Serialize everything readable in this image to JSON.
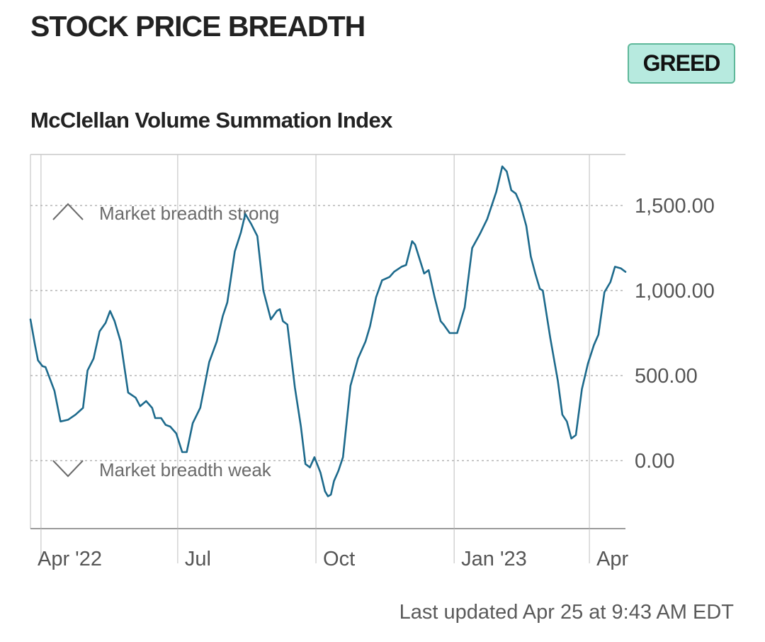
{
  "header": {
    "title": "STOCK PRICE BREADTH",
    "badge": "GREED",
    "subtitle": "McClellan Volume Summation Index"
  },
  "footer": {
    "updated": "Last updated Apr 25 at 9:43 AM EDT"
  },
  "colors": {
    "line": "#1d6a8c",
    "badge_bg": "#b7eadf",
    "badge_border": "#5fb89a",
    "gridline": "#b5b5b5"
  },
  "annotations": {
    "strong": {
      "label": "Market breadth strong",
      "icon": "chevron-up-icon"
    },
    "weak": {
      "label": "Market breadth weak",
      "icon": "chevron-down-icon"
    }
  },
  "chart_data": {
    "type": "line",
    "title": "McClellan Volume Summation Index",
    "xlabel": "",
    "ylabel": "",
    "ylim": [
      -400,
      1800
    ],
    "xlim": [
      "2022-03-25",
      "2023-04-25"
    ],
    "y_ticks": [
      {
        "value": 1500,
        "label": "1,500.00"
      },
      {
        "value": 1000,
        "label": "1,000.00"
      },
      {
        "value": 500,
        "label": "500.00"
      },
      {
        "value": 0,
        "label": "0.00"
      }
    ],
    "x_ticks": [
      {
        "date": "2022-04-01",
        "label": "Apr '22"
      },
      {
        "date": "2022-07-01",
        "label": "Jul"
      },
      {
        "date": "2022-10-01",
        "label": "Oct"
      },
      {
        "date": "2023-01-01",
        "label": "Jan '23"
      },
      {
        "date": "2023-04-01",
        "label": "Apr"
      }
    ],
    "grid": {
      "horizontal": "dotted",
      "vertical": "solid"
    },
    "series": [
      {
        "points": [
          [
            "2022-03-25",
            830
          ],
          [
            "2022-03-28",
            680
          ],
          [
            "2022-03-30",
            590
          ],
          [
            "2022-04-02",
            555
          ],
          [
            "2022-04-04",
            550
          ],
          [
            "2022-04-07",
            480
          ],
          [
            "2022-04-10",
            410
          ],
          [
            "2022-04-14",
            230
          ],
          [
            "2022-04-19",
            240
          ],
          [
            "2022-04-24",
            270
          ],
          [
            "2022-04-29",
            310
          ],
          [
            "2022-05-02",
            530
          ],
          [
            "2022-05-06",
            600
          ],
          [
            "2022-05-10",
            760
          ],
          [
            "2022-05-14",
            810
          ],
          [
            "2022-05-17",
            880
          ],
          [
            "2022-05-20",
            820
          ],
          [
            "2022-05-24",
            700
          ],
          [
            "2022-05-29",
            400
          ],
          [
            "2022-06-03",
            370
          ],
          [
            "2022-06-06",
            320
          ],
          [
            "2022-06-10",
            350
          ],
          [
            "2022-06-14",
            310
          ],
          [
            "2022-06-16",
            250
          ],
          [
            "2022-06-20",
            250
          ],
          [
            "2022-06-23",
            210
          ],
          [
            "2022-06-26",
            200
          ],
          [
            "2022-06-30",
            160
          ],
          [
            "2022-07-04",
            50
          ],
          [
            "2022-07-07",
            50
          ],
          [
            "2022-07-11",
            220
          ],
          [
            "2022-07-16",
            310
          ],
          [
            "2022-07-22",
            580
          ],
          [
            "2022-07-27",
            700
          ],
          [
            "2022-07-31",
            850
          ],
          [
            "2022-08-03",
            930
          ],
          [
            "2022-08-08",
            1230
          ],
          [
            "2022-08-12",
            1340
          ],
          [
            "2022-08-15",
            1450
          ],
          [
            "2022-08-19",
            1390
          ],
          [
            "2022-08-23",
            1320
          ],
          [
            "2022-08-27",
            1000
          ],
          [
            "2022-09-01",
            830
          ],
          [
            "2022-09-05",
            880
          ],
          [
            "2022-09-07",
            890
          ],
          [
            "2022-09-09",
            820
          ],
          [
            "2022-09-12",
            800
          ],
          [
            "2022-09-17",
            430
          ],
          [
            "2022-09-21",
            200
          ],
          [
            "2022-09-24",
            -20
          ],
          [
            "2022-09-27",
            -40
          ],
          [
            "2022-09-30",
            20
          ],
          [
            "2022-10-04",
            -70
          ],
          [
            "2022-10-07",
            -180
          ],
          [
            "2022-10-09",
            -210
          ],
          [
            "2022-10-11",
            -200
          ],
          [
            "2022-10-13",
            -120
          ],
          [
            "2022-10-16",
            -60
          ],
          [
            "2022-10-19",
            20
          ],
          [
            "2022-10-24",
            440
          ],
          [
            "2022-10-29",
            600
          ],
          [
            "2022-11-03",
            700
          ],
          [
            "2022-11-06",
            790
          ],
          [
            "2022-11-10",
            960
          ],
          [
            "2022-11-14",
            1060
          ],
          [
            "2022-11-19",
            1080
          ],
          [
            "2022-11-22",
            1110
          ],
          [
            "2022-11-27",
            1140
          ],
          [
            "2022-11-30",
            1150
          ],
          [
            "2022-12-04",
            1290
          ],
          [
            "2022-12-06",
            1270
          ],
          [
            "2022-12-12",
            1100
          ],
          [
            "2022-12-15",
            1120
          ],
          [
            "2022-12-19",
            960
          ],
          [
            "2022-12-23",
            820
          ],
          [
            "2022-12-25",
            800
          ],
          [
            "2022-12-29",
            750
          ],
          [
            "2023-01-03",
            750
          ],
          [
            "2023-01-08",
            900
          ],
          [
            "2023-01-13",
            1250
          ],
          [
            "2023-01-18",
            1330
          ],
          [
            "2023-01-23",
            1420
          ],
          [
            "2023-01-29",
            1580
          ],
          [
            "2023-02-02",
            1730
          ],
          [
            "2023-02-05",
            1700
          ],
          [
            "2023-02-08",
            1590
          ],
          [
            "2023-02-11",
            1570
          ],
          [
            "2023-02-14",
            1510
          ],
          [
            "2023-02-18",
            1380
          ],
          [
            "2023-02-21",
            1200
          ],
          [
            "2023-02-24",
            1100
          ],
          [
            "2023-02-27",
            1010
          ],
          [
            "2023-03-01",
            1000
          ],
          [
            "2023-03-06",
            720
          ],
          [
            "2023-03-11",
            470
          ],
          [
            "2023-03-14",
            270
          ],
          [
            "2023-03-17",
            230
          ],
          [
            "2023-03-20",
            130
          ],
          [
            "2023-03-23",
            150
          ],
          [
            "2023-03-27",
            420
          ],
          [
            "2023-03-31",
            570
          ],
          [
            "2023-04-04",
            680
          ],
          [
            "2023-04-07",
            740
          ],
          [
            "2023-04-11",
            990
          ],
          [
            "2023-04-15",
            1050
          ],
          [
            "2023-04-18",
            1140
          ],
          [
            "2023-04-22",
            1130
          ],
          [
            "2023-04-25",
            1110
          ]
        ]
      }
    ]
  }
}
